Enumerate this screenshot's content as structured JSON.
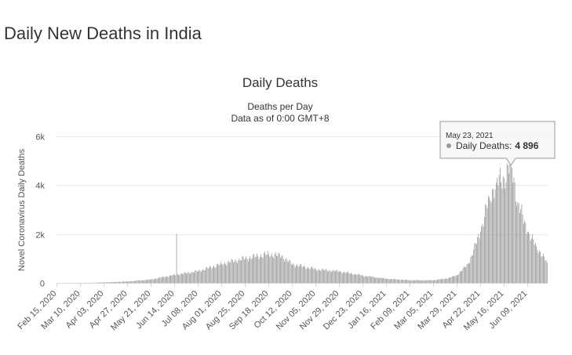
{
  "page": {
    "heading": "Daily New Deaths in India"
  },
  "chart_data": {
    "type": "bar",
    "title": "Daily Deaths",
    "subtitle_line1": "Deaths per Day",
    "subtitle_line2": "Data as of 0:00 GMT+8",
    "ylabel": "Novel Coronavirus Daily Deaths",
    "xlabel": "",
    "ylim": [
      0,
      6000
    ],
    "y_ticks": [
      0,
      2000,
      4000,
      6000
    ],
    "y_tick_labels": [
      "0",
      "2k",
      "4k",
      "6k"
    ],
    "x_range": [
      "2020-02-15",
      "2021-06-29"
    ],
    "x_tick_labels": [
      "Feb 15, 2020",
      "Mar 10, 2020",
      "Apr 03, 2020",
      "Apr 27, 2020",
      "May 21, 2020",
      "Jun 14, 2020",
      "Jul 08, 2020",
      "Aug 01, 2020",
      "Aug 25, 2020",
      "Sep 18, 2020",
      "Oct 12, 2020",
      "Nov 05, 2020",
      "Nov 29, 2020",
      "Dec 23, 2020",
      "Jan 16, 2021",
      "Feb 09, 2021",
      "Mar 05, 2021",
      "Mar 29, 2021",
      "Apr 22, 2021",
      "May 16, 2021",
      "Jun 09, 2021"
    ],
    "grid": true,
    "series_name": "Daily Deaths",
    "series_color": "#999999",
    "spike": {
      "date": "2020-06-16",
      "value": 2003
    },
    "control_points": [
      {
        "date": "2020-02-15",
        "value": 0
      },
      {
        "date": "2020-03-20",
        "value": 2
      },
      {
        "date": "2020-04-10",
        "value": 30
      },
      {
        "date": "2020-04-27",
        "value": 60
      },
      {
        "date": "2020-05-21",
        "value": 140
      },
      {
        "date": "2020-06-14",
        "value": 330
      },
      {
        "date": "2020-07-08",
        "value": 480
      },
      {
        "date": "2020-08-01",
        "value": 780
      },
      {
        "date": "2020-08-25",
        "value": 1000
      },
      {
        "date": "2020-09-18",
        "value": 1180
      },
      {
        "date": "2020-10-01",
        "value": 1100
      },
      {
        "date": "2020-10-12",
        "value": 760
      },
      {
        "date": "2020-11-05",
        "value": 560
      },
      {
        "date": "2020-11-29",
        "value": 470
      },
      {
        "date": "2020-12-23",
        "value": 300
      },
      {
        "date": "2021-01-16",
        "value": 170
      },
      {
        "date": "2021-02-09",
        "value": 110
      },
      {
        "date": "2021-03-05",
        "value": 110
      },
      {
        "date": "2021-03-20",
        "value": 190
      },
      {
        "date": "2021-03-29",
        "value": 320
      },
      {
        "date": "2021-04-10",
        "value": 800
      },
      {
        "date": "2021-04-22",
        "value": 2100
      },
      {
        "date": "2021-05-01",
        "value": 3500
      },
      {
        "date": "2021-05-08",
        "value": 4100
      },
      {
        "date": "2021-05-16",
        "value": 4300
      },
      {
        "date": "2021-05-23",
        "value": 4896
      },
      {
        "date": "2021-05-30",
        "value": 3300
      },
      {
        "date": "2021-06-09",
        "value": 2100
      },
      {
        "date": "2021-06-18",
        "value": 1500
      },
      {
        "date": "2021-06-29",
        "value": 830
      }
    ],
    "tooltip": {
      "date": "May 23, 2021",
      "label": "Daily Deaths:",
      "value": "4 896"
    }
  }
}
